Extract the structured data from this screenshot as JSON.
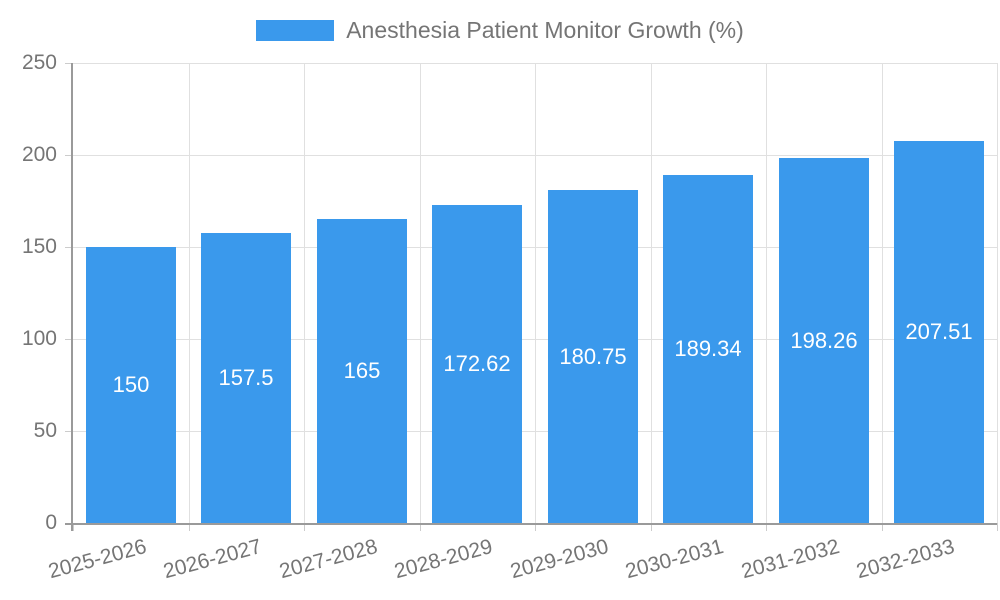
{
  "chart_data": {
    "type": "bar",
    "title": "Anesthesia Patient Monitor Growth (%)",
    "legend_position": "top-center",
    "categories": [
      "2025-2026",
      "2026-2027",
      "2027-2028",
      "2028-2029",
      "2029-2030",
      "2030-2031",
      "2031-2032",
      "2032-2033"
    ],
    "values": [
      150,
      157.5,
      165,
      172.62,
      180.75,
      189.34,
      198.26,
      207.51
    ],
    "xlabel": "",
    "ylabel": "",
    "ylim": [
      0,
      250
    ],
    "yticks": [
      0,
      50,
      100,
      150,
      200,
      250
    ],
    "grid": true,
    "x_label_rotation_deg": -15,
    "colors": {
      "bar": "#3A99EC",
      "bar_value_text": "#ffffff",
      "grid": "#e0e0e0",
      "tick_mark": "#cccccc",
      "axis": "#9a9a9a",
      "tick_text": "#757575",
      "title_text": "#757575",
      "background": "#ffffff"
    }
  }
}
